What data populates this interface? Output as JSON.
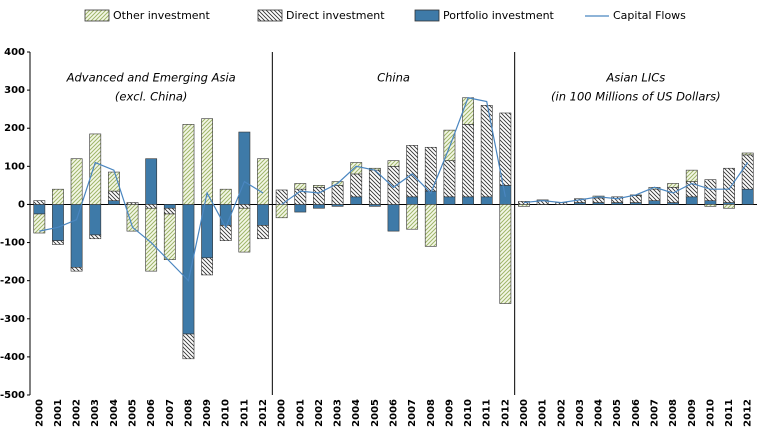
{
  "chart_data": {
    "type": "bar",
    "ylim": [
      -500,
      400
    ],
    "yticks": [
      -500,
      -400,
      -300,
      -200,
      -100,
      0,
      100,
      200,
      300,
      400
    ],
    "series": [
      {
        "name": "Portfolio investment",
        "color": "#3e7aa8"
      },
      {
        "name": "Direct investment",
        "color": "#333333"
      },
      {
        "name": "Other investment",
        "color": "#b7c98a"
      },
      {
        "name": "Capital Flows",
        "color": "#4a86c0"
      }
    ],
    "panels": [
      {
        "title": "Advanced and Emerging Asia",
        "subtitle": "(excl. China)",
        "categories": [
          "2000",
          "2001",
          "2002",
          "2003",
          "2004",
          "2005",
          "2006",
          "2007",
          "2008",
          "2009",
          "2010",
          "2011",
          "2012"
        ],
        "values": [
          [
            -25,
            -95,
            -165,
            -80,
            10,
            0,
            120,
            -10,
            -340,
            -140,
            -55,
            190,
            -55
          ],
          [
            10,
            -10,
            -10,
            -10,
            25,
            5,
            -10,
            -15,
            -65,
            -45,
            -40,
            -10,
            -35
          ],
          [
            -50,
            40,
            120,
            185,
            50,
            -70,
            -165,
            -120,
            210,
            225,
            40,
            -115,
            120
          ],
          [
            -70,
            -60,
            -40,
            110,
            90,
            -60,
            -100,
            -150,
            -200,
            30,
            -60,
            60,
            30
          ]
        ]
      },
      {
        "title": "China",
        "categories": [
          "2000",
          "2001",
          "2002",
          "2003",
          "2004",
          "2005",
          "2006",
          "2007",
          "2008",
          "2009",
          "2010",
          "2011",
          "2012"
        ],
        "values": [
          [
            0,
            -20,
            -10,
            -5,
            20,
            -5,
            -70,
            20,
            35,
            20,
            20,
            20,
            50
          ],
          [
            38,
            40,
            45,
            50,
            60,
            90,
            100,
            135,
            115,
            95,
            190,
            240,
            190
          ],
          [
            -35,
            15,
            5,
            10,
            30,
            5,
            15,
            -65,
            -110,
            80,
            70,
            0,
            -260
          ],
          [
            0,
            35,
            30,
            55,
            100,
            90,
            45,
            80,
            30,
            150,
            280,
            270,
            20
          ]
        ]
      },
      {
        "title": "Asian LICs",
        "subtitle": "(in 100 Millions of US Dollars)",
        "categories": [
          "2000",
          "2001",
          "2002",
          "2003",
          "2004",
          "2005",
          "2006",
          "2007",
          "2008",
          "2009",
          "2010",
          "2011",
          "2012"
        ],
        "values": [
          [
            0,
            0,
            0,
            5,
            5,
            5,
            5,
            10,
            5,
            20,
            10,
            5,
            40
          ],
          [
            8,
            10,
            5,
            10,
            12,
            15,
            18,
            30,
            40,
            40,
            55,
            90,
            90
          ],
          [
            -5,
            2,
            0,
            0,
            5,
            0,
            2,
            5,
            10,
            30,
            -5,
            -10,
            5
          ],
          [
            5,
            10,
            5,
            12,
            20,
            15,
            25,
            45,
            30,
            55,
            40,
            40,
            110
          ]
        ]
      }
    ]
  }
}
